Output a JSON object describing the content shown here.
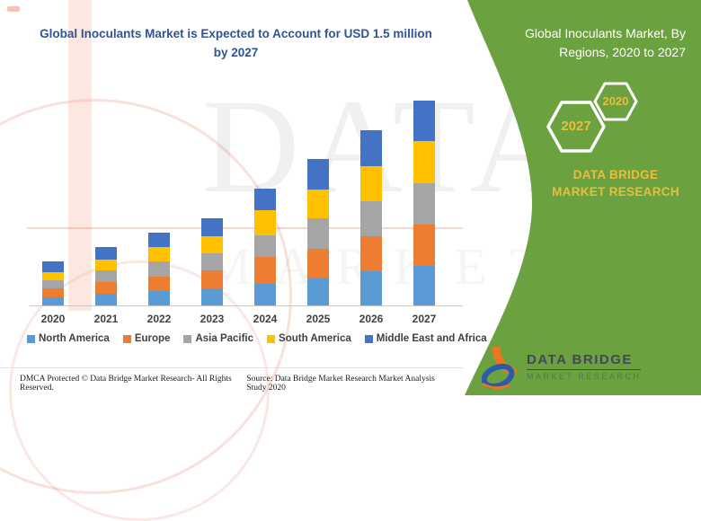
{
  "header": {
    "title": "Global Inoculants Market is Expected to Account for USD 1.5 million by 2027",
    "title_color": "#2F5496"
  },
  "chart_data": {
    "type": "bar",
    "stacked": true,
    "title": "Global Inoculants Market is Expected to Account for USD 1.5 million by 2027",
    "unit": "USD million",
    "categories": [
      "2020",
      "2021",
      "2022",
      "2023",
      "2024",
      "2025",
      "2026",
      "2027"
    ],
    "series": [
      {
        "name": "North America",
        "color": "#5B9BD5",
        "values": [
          0.059,
          0.086,
          0.105,
          0.125,
          0.158,
          0.204,
          0.25,
          0.289
        ]
      },
      {
        "name": "Europe",
        "color": "#ED7D31",
        "values": [
          0.066,
          0.086,
          0.105,
          0.132,
          0.197,
          0.211,
          0.257,
          0.303
        ]
      },
      {
        "name": "Asia Pacific",
        "color": "#A5A5A5",
        "values": [
          0.059,
          0.086,
          0.112,
          0.125,
          0.158,
          0.224,
          0.257,
          0.303
        ]
      },
      {
        "name": "South America",
        "color": "#FFC000",
        "values": [
          0.059,
          0.079,
          0.105,
          0.125,
          0.184,
          0.211,
          0.257,
          0.309
        ]
      },
      {
        "name": "Middle East and Africa",
        "color": "#4472C4",
        "values": [
          0.079,
          0.092,
          0.105,
          0.132,
          0.158,
          0.224,
          0.263,
          0.296
        ]
      }
    ],
    "totals": [
      0.32,
      0.43,
      0.53,
      0.64,
      0.86,
      1.07,
      1.28,
      1.5
    ],
    "ylim": [
      0,
      1.5
    ],
    "grid": false,
    "y_axis_visible": false,
    "legend_position": "bottom"
  },
  "side_panel": {
    "title": "Global Inoculants Market, By Regions, 2020 to 2027",
    "hexagon_large_label": "2027",
    "hexagon_small_label": "2020",
    "brand_text": "DATA BRIDGE MARKET RESEARCH",
    "background_color": "#6CA13F",
    "accent_text_color": "#E9BE3C"
  },
  "logo": {
    "name": "DATA BRIDGE",
    "subtitle": "MARKET RESEARCH"
  },
  "footer": {
    "left": "DMCA Protected © Data Bridge Market Research- All Rights Reserved.",
    "right": "Source: Data Bridge Market Research Market Analysis Study 2020"
  },
  "watermark": {
    "line1": "DATA BRIDGE",
    "line2": "MARKET RESEARCH"
  }
}
